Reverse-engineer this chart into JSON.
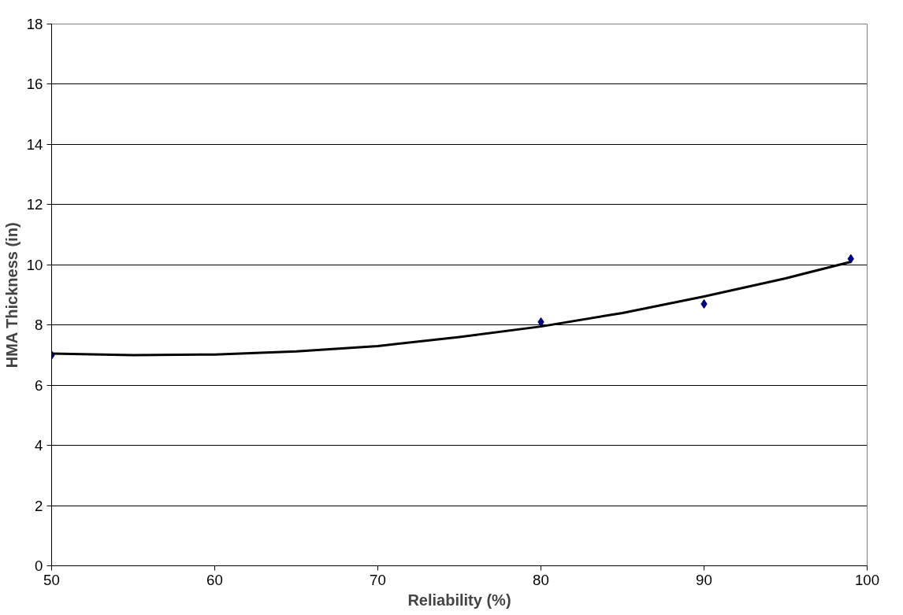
{
  "chart_data": {
    "type": "scatter",
    "xlabel": "Reliability (%)",
    "ylabel": "HMA Thickness (in)",
    "x": [
      50,
      80,
      90,
      99
    ],
    "series": [
      {
        "color": "#000080",
        "marker": "diamond",
        "values": [
          7.0,
          8.1,
          8.7,
          10.2
        ]
      },
      {
        "type": "line",
        "color": "#000000",
        "line_style": "solid",
        "x": [
          50,
          55,
          60,
          65,
          70,
          75,
          80,
          85,
          90,
          95,
          99
        ],
        "values": [
          7.05,
          7.0,
          7.02,
          7.12,
          7.3,
          7.6,
          7.95,
          8.4,
          8.95,
          9.55,
          10.1
        ]
      }
    ],
    "xlim": [
      50,
      100
    ],
    "xticks": [
      50,
      60,
      70,
      80,
      90,
      100
    ],
    "ylim": [
      0,
      18
    ],
    "yticks": [
      0,
      2,
      4,
      6,
      8,
      10,
      12,
      14,
      16,
      18
    ],
    "grid": "y"
  }
}
